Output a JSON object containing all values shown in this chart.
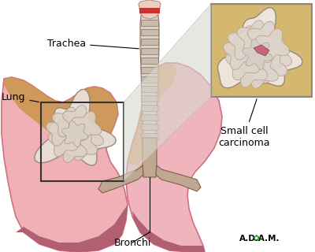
{
  "bg_color": "#ffffff",
  "labels": {
    "trachea": "Trachea",
    "lung": "Lung",
    "bronchi": "Bronchi",
    "small_cell": "Small cell\ncarcinoma",
    "adam": "A.D.A.M."
  },
  "lung_pink": "#f0b0b5",
  "lung_dark_pink": "#d07080",
  "lung_dark_bottom": "#b06070",
  "lung_orange": "#d4a050",
  "trachea_light": "#dcd0c8",
  "trachea_ring": "#b8a090",
  "trachea_dark": "#907060",
  "larynx_red": "#cc3030",
  "inset_bg": "#d4b870",
  "inset_edge": "#888880",
  "zoom_box_edge": "#333333",
  "connect_fill": "#d0d0c8",
  "label_color": "#000000",
  "bronchi_color": "#c0a890",
  "bronchi_edge": "#806050"
}
